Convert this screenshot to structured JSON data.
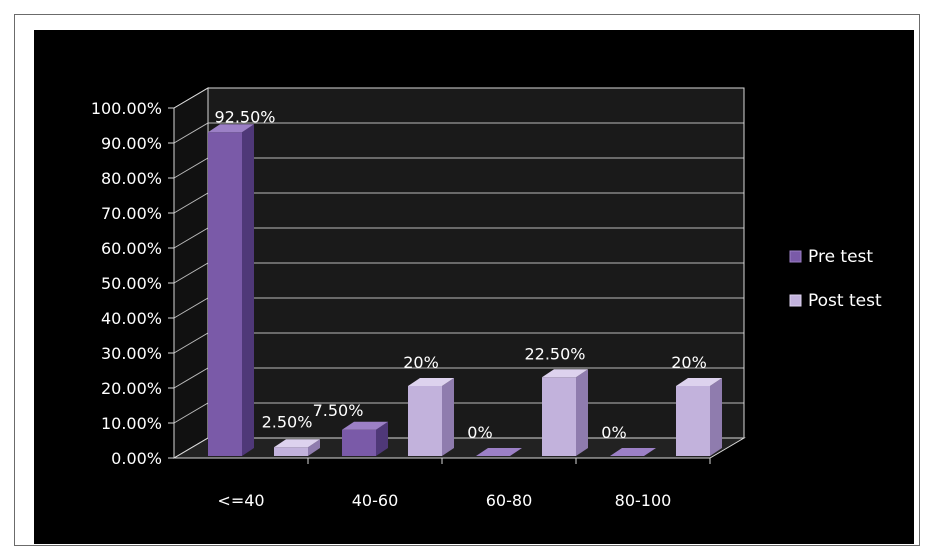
{
  "chart_data": {
    "type": "bar",
    "categories": [
      "<=40",
      "40-60",
      "60-80",
      "80-100"
    ],
    "series": [
      {
        "name": "Pre test",
        "values": [
          92.5,
          7.5,
          0,
          0
        ],
        "labels": [
          "92.50%",
          "7.50%",
          "0%",
          "0%"
        ]
      },
      {
        "name": "Post test",
        "values": [
          2.5,
          20,
          22.5,
          20
        ],
        "labels": [
          "2.50%",
          "20%",
          "22.50%",
          "20%"
        ]
      }
    ],
    "y_ticks": [
      "0.00%",
      "10.00%",
      "20.00%",
      "30.00%",
      "40.00%",
      "50.00%",
      "60.00%",
      "70.00%",
      "80.00%",
      "90.00%",
      "100.00%"
    ],
    "ylim": [
      0,
      100
    ],
    "grid": true,
    "style": "3d-clustered-column",
    "legend_position": "right",
    "colors": {
      "pre_front": "#7a5aa8",
      "pre_side": "#4f3878",
      "pre_top": "#9c80c6",
      "post_front": "#c2b2dc",
      "post_side": "#8f7cae",
      "post_top": "#ddd2ee",
      "grid": "#d8d8d8",
      "background": "#000000"
    }
  }
}
